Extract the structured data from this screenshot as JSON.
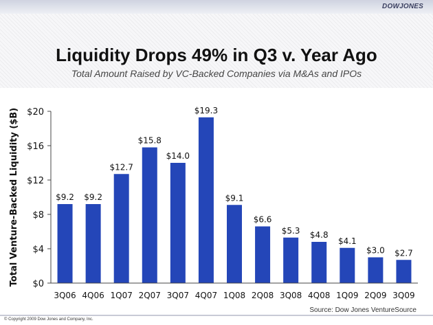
{
  "brand": "DOWJONES",
  "title": "Liquidity Drops 49% in Q3 v. Year Ago",
  "subtitle": "Total Amount Raised by VC-Backed Companies via M&As and IPOs",
  "source": "Source: Dow Jones VentureSource",
  "copyright": "© Copyright 2009 Dow Jones and Company, Inc.",
  "colors": {
    "bar": "#2446b8",
    "axis": "#444444",
    "text": "#111111"
  },
  "chart_data": {
    "type": "bar",
    "title": "Liquidity Drops 49% in Q3 v. Year Ago",
    "subtitle": "Total Amount Raised by VC-Backed Companies via M&As and IPOs",
    "xlabel": "",
    "ylabel": "Total Venture-Backed Liquidity ($B)",
    "ylim": [
      0,
      20
    ],
    "yticks": [
      0,
      4,
      8,
      12,
      16,
      20
    ],
    "ytick_labels": [
      "$0",
      "$4",
      "$8",
      "$12",
      "$16",
      "$20"
    ],
    "grid": false,
    "legend": "none",
    "categories": [
      "3Q06",
      "4Q06",
      "1Q07",
      "2Q07",
      "3Q07",
      "4Q07",
      "1Q08",
      "2Q08",
      "3Q08",
      "4Q08",
      "1Q09",
      "2Q09",
      "3Q09"
    ],
    "values": [
      9.2,
      9.2,
      12.7,
      15.8,
      14.0,
      19.3,
      9.1,
      6.6,
      5.3,
      4.8,
      4.1,
      3.0,
      2.7
    ],
    "data_labels": [
      "$9.2",
      "$9.2",
      "$12.7",
      "$15.8",
      "$14.0",
      "$19.3",
      "$9.1",
      "$6.6",
      "$5.3",
      "$4.8",
      "$4.1",
      "$3.0",
      "$2.7"
    ]
  }
}
